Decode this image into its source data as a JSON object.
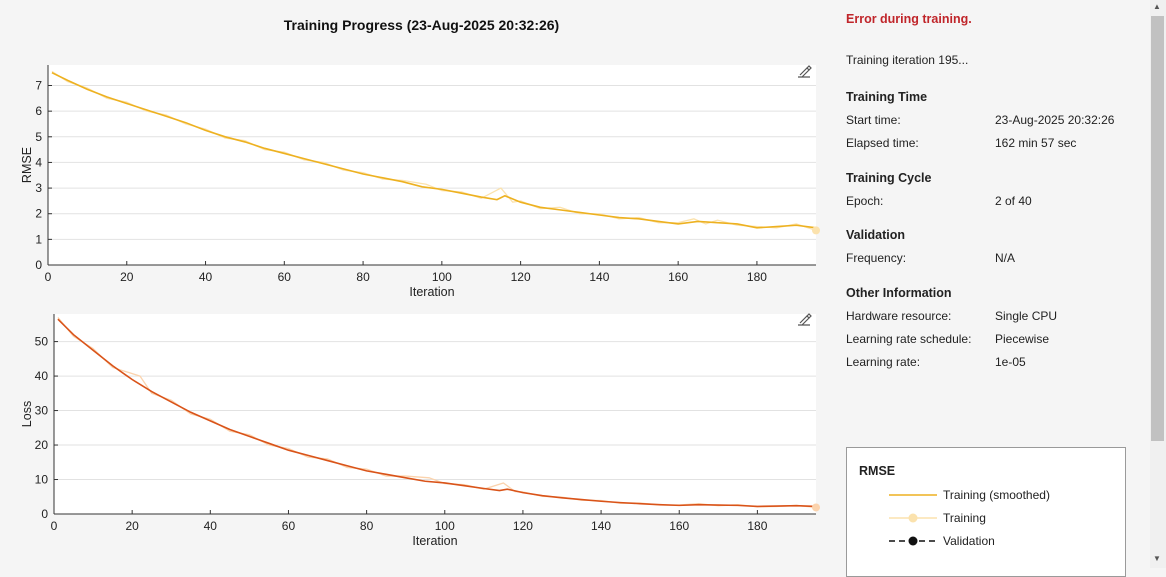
{
  "title": "Training Progress (23-Aug-2025 20:32:26)",
  "status": "Error during training.",
  "iteration_text": "Training iteration 195...",
  "sections": {
    "training_time": {
      "header": "Training Time",
      "start_label": "Start time:",
      "start_value": "23-Aug-2025 20:32:26",
      "elapsed_label": "Elapsed time:",
      "elapsed_value": "162 min 57 sec"
    },
    "training_cycle": {
      "header": "Training Cycle",
      "epoch_label": "Epoch:",
      "epoch_value": "2 of 40"
    },
    "validation": {
      "header": "Validation",
      "frequency_label": "Frequency:",
      "frequency_value": "N/A"
    },
    "other": {
      "header": "Other Information",
      "hardware_label": "Hardware resource:",
      "hardware_value": "Single CPU",
      "schedule_label": "Learning rate schedule:",
      "schedule_value": "Piecewise",
      "lr_label": "Learning rate:",
      "lr_value": "1e-05"
    }
  },
  "legend": {
    "title": "RMSE",
    "smoothed": "Training (smoothed)",
    "training": "Training",
    "validation": "Validation"
  },
  "icons": {
    "zoom": "pan-zoom-icon",
    "scroll_up": "scroll-up-arrow",
    "scroll_down": "scroll-down-arrow"
  },
  "colors": {
    "rmse_line": "#edb120",
    "rmse_raw": "#fbe2ad",
    "loss_line": "#d95319",
    "loss_raw": "#fbd3ad",
    "status_error": "#c0252a"
  },
  "chart_data": [
    {
      "type": "line",
      "xlabel": "Iteration",
      "ylabel": "RMSE",
      "xlim": [
        0,
        195
      ],
      "ylim": [
        0,
        7.8
      ],
      "xticks": [
        0,
        20,
        40,
        60,
        80,
        100,
        120,
        140,
        160,
        180
      ],
      "yticks": [
        0,
        1,
        2,
        3,
        4,
        5,
        6,
        7
      ],
      "grid": "horizontal",
      "series": [
        {
          "name": "Training (smoothed)",
          "x": [
            1,
            5,
            10,
            15,
            20,
            25,
            30,
            35,
            40,
            45,
            50,
            55,
            60,
            65,
            70,
            75,
            80,
            85,
            90,
            95,
            100,
            105,
            110,
            114,
            116,
            120,
            125,
            130,
            135,
            140,
            145,
            150,
            155,
            160,
            165,
            170,
            175,
            180,
            185,
            190,
            195
          ],
          "values": [
            7.5,
            7.2,
            6.85,
            6.55,
            6.3,
            6.05,
            5.8,
            5.55,
            5.25,
            5.0,
            4.8,
            4.55,
            4.35,
            4.15,
            3.95,
            3.75,
            3.55,
            3.4,
            3.25,
            3.05,
            2.95,
            2.8,
            2.65,
            2.55,
            2.7,
            2.45,
            2.25,
            2.15,
            2.05,
            1.95,
            1.85,
            1.8,
            1.7,
            1.6,
            1.7,
            1.65,
            1.6,
            1.45,
            1.5,
            1.55,
            1.45
          ]
        },
        {
          "name": "Training",
          "x": [
            1,
            5,
            10,
            15,
            20,
            25,
            30,
            35,
            40,
            45,
            50,
            55,
            60,
            65,
            70,
            75,
            80,
            85,
            90,
            96,
            100,
            105,
            110,
            115,
            118,
            120,
            125,
            130,
            135,
            140,
            145,
            150,
            155,
            160,
            164,
            167,
            170,
            175,
            180,
            185,
            190,
            195
          ],
          "values": [
            7.55,
            7.15,
            6.9,
            6.5,
            6.35,
            6.0,
            5.85,
            5.5,
            5.3,
            4.95,
            4.85,
            4.5,
            4.4,
            4.1,
            4.0,
            3.7,
            3.6,
            3.35,
            3.3,
            3.15,
            2.9,
            2.85,
            2.6,
            3.0,
            2.45,
            2.5,
            2.2,
            2.25,
            2.0,
            2.0,
            1.8,
            1.85,
            1.65,
            1.65,
            1.8,
            1.6,
            1.75,
            1.55,
            1.5,
            1.45,
            1.6,
            1.35
          ]
        }
      ]
    },
    {
      "type": "line",
      "xlabel": "Iteration",
      "ylabel": "Loss",
      "xlim": [
        0,
        195
      ],
      "ylim": [
        0,
        58
      ],
      "xticks": [
        0,
        20,
        40,
        60,
        80,
        100,
        120,
        140,
        160,
        180
      ],
      "yticks": [
        0,
        10,
        20,
        30,
        40,
        50
      ],
      "grid": "horizontal",
      "series": [
        {
          "name": "Training (smoothed)",
          "x": [
            1,
            5,
            10,
            15,
            20,
            25,
            30,
            35,
            40,
            45,
            50,
            55,
            60,
            65,
            70,
            75,
            80,
            85,
            90,
            95,
            100,
            105,
            110,
            114,
            116,
            120,
            125,
            130,
            135,
            140,
            145,
            150,
            155,
            160,
            165,
            170,
            175,
            180,
            185,
            190,
            195
          ],
          "values": [
            56.5,
            52,
            47.5,
            43,
            39,
            35.5,
            32.5,
            29.5,
            27,
            24.5,
            22.5,
            20.5,
            18.5,
            17,
            15.5,
            14,
            12.5,
            11.5,
            10.5,
            9.5,
            9,
            8.2,
            7.4,
            6.8,
            7.2,
            6.2,
            5.3,
            4.7,
            4.2,
            3.7,
            3.3,
            3.0,
            2.7,
            2.5,
            2.7,
            2.6,
            2.5,
            2.2,
            2.3,
            2.4,
            2.2
          ]
        },
        {
          "name": "Training",
          "x": [
            1,
            5,
            10,
            15,
            22,
            25,
            30,
            35,
            40,
            45,
            50,
            55,
            60,
            65,
            70,
            75,
            80,
            85,
            90,
            96,
            100,
            105,
            110,
            115,
            118,
            120,
            125,
            130,
            135,
            140,
            145,
            150,
            155,
            160,
            165,
            170,
            175,
            180,
            185,
            190,
            195
          ],
          "values": [
            57,
            51.5,
            48,
            42.5,
            40,
            35,
            33,
            29,
            27.5,
            24,
            23,
            20,
            19,
            16.5,
            16,
            13.5,
            13,
            11,
            11,
            10.5,
            8.8,
            8.5,
            7.2,
            9.0,
            6.5,
            6.4,
            5.1,
            4.9,
            4.0,
            3.9,
            3.1,
            3.2,
            2.6,
            2.6,
            3.0,
            2.4,
            2.7,
            2.1,
            2.2,
            2.5,
            1.9
          ]
        }
      ]
    }
  ]
}
